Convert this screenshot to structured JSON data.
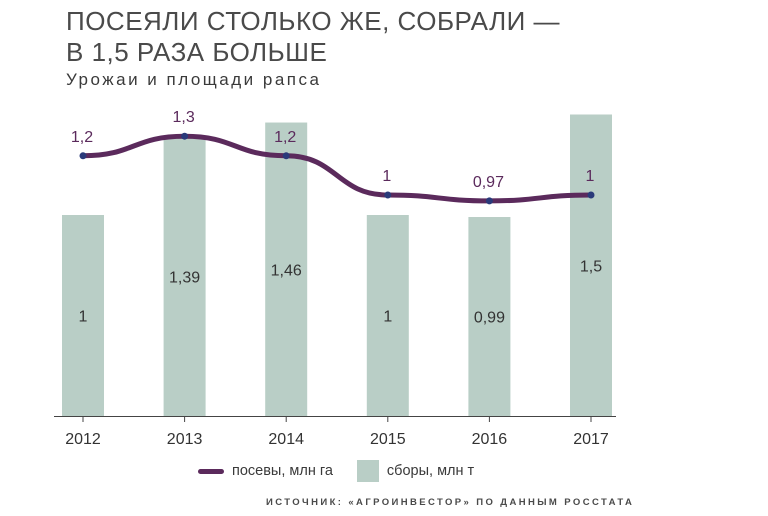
{
  "chart_data": {
    "type": "bar+line",
    "title_line1": "ПОСЕЯЛИ СТОЛЬКО ЖЕ, СОБРАЛИ —",
    "title_line2": "В 1,5 РАЗА БОЛЬШЕ",
    "subtitle": "Урожаи и площади рапса",
    "categories": [
      "2012",
      "2013",
      "2014",
      "2015",
      "2016",
      "2017"
    ],
    "series": [
      {
        "name": "сборы, млн т",
        "kind": "bar",
        "color": "#b9cec6",
        "values": [
          1,
          1.39,
          1.46,
          1,
          0.99,
          1.5
        ],
        "labels": [
          "1",
          "1,39",
          "1,46",
          "1",
          "0,99",
          "1,5"
        ]
      },
      {
        "name": "посевы, млн га",
        "kind": "line",
        "color": "#5b2a5c",
        "values": [
          1.2,
          1.3,
          1.2,
          1,
          0.97,
          1
        ],
        "labels": [
          "1,2",
          "1,3",
          "1,2",
          "1",
          "0,97",
          "1"
        ]
      }
    ],
    "legend": {
      "line_label": "посевы, млн га",
      "bar_label": "сборы, млн т",
      "placement": "bottom"
    },
    "source": "ИСТОЧНИК: «АГРОИНВЕСТОР» ПО ДАННЫМ РОССТАТА"
  }
}
